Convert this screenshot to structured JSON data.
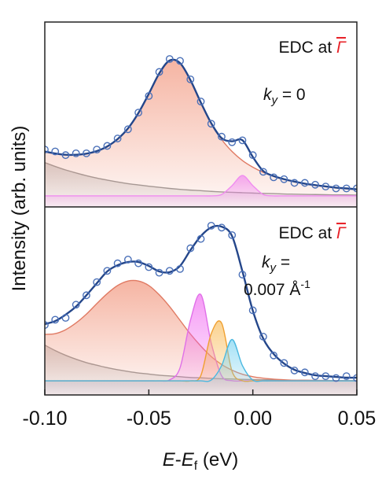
{
  "chart_data": [
    {
      "type": "line",
      "ylabel": "Intensity (arb. units)",
      "annotations": [
        [
          "EDC at ",
          "Γ"
        ],
        [
          "k",
          "y",
          " = 0"
        ]
      ],
      "annotation_color": "#e8242a",
      "xlim": [
        -0.1,
        0.05
      ],
      "ylim": [
        0,
        1
      ],
      "x": [
        -0.1,
        -0.095,
        -0.09,
        -0.085,
        -0.08,
        -0.075,
        -0.07,
        -0.065,
        -0.06,
        -0.055,
        -0.05,
        -0.045,
        -0.04,
        -0.035,
        -0.03,
        -0.025,
        -0.02,
        -0.015,
        -0.01,
        -0.005,
        0.0,
        0.005,
        0.01,
        0.015,
        0.02,
        0.025,
        0.03,
        0.035,
        0.04,
        0.045,
        0.05
      ],
      "series": [
        {
          "kind": "area",
          "color": "#9a9a9a",
          "fill": "#bdbdbd",
          "values": [
            0.24,
            0.219,
            0.2,
            0.184,
            0.169,
            0.156,
            0.145,
            0.135,
            0.126,
            0.119,
            0.112,
            0.106,
            0.1,
            0.095,
            0.091,
            0.088,
            0.084,
            0.081,
            0.079,
            0.077,
            0.075,
            0.073,
            0.072,
            0.07,
            0.069,
            0.068,
            0.067,
            0.066,
            0.065,
            0.065,
            0.064
          ]
        },
        {
          "kind": "area",
          "color": "#e07a63",
          "fill": "#f08a6e",
          "values": [
            0.3,
            0.289,
            0.282,
            0.282,
            0.288,
            0.302,
            0.327,
            0.367,
            0.425,
            0.508,
            0.612,
            0.722,
            0.792,
            0.778,
            0.686,
            0.565,
            0.453,
            0.365,
            0.3,
            0.251,
            0.215,
            0.187,
            0.167,
            0.15,
            0.137,
            0.126,
            0.118,
            0.111,
            0.104,
            0.1,
            0.095
          ]
        },
        {
          "kind": "area",
          "color": "#f08cf0",
          "fill": "#f07ef0",
          "values": [
            0.06,
            0.06,
            0.06,
            0.06,
            0.06,
            0.06,
            0.06,
            0.06,
            0.06,
            0.06,
            0.06,
            0.06,
            0.06,
            0.06,
            0.06,
            0.06,
            0.06,
            0.067,
            0.115,
            0.17,
            0.115,
            0.067,
            0.06,
            0.06,
            0.06,
            0.06,
            0.06,
            0.06,
            0.06,
            0.06,
            0.06
          ]
        },
        {
          "kind": "line",
          "color": "#24468a",
          "values": [
            0.3,
            0.289,
            0.282,
            0.282,
            0.288,
            0.302,
            0.327,
            0.367,
            0.425,
            0.508,
            0.612,
            0.722,
            0.792,
            0.778,
            0.686,
            0.565,
            0.453,
            0.372,
            0.355,
            0.361,
            0.27,
            0.194,
            0.167,
            0.15,
            0.137,
            0.126,
            0.118,
            0.111,
            0.104,
            0.1,
            0.095
          ]
        },
        {
          "kind": "points",
          "color": "#4a70b8",
          "values": [
            0.31,
            0.3,
            0.28,
            0.29,
            0.29,
            0.31,
            0.33,
            0.37,
            0.42,
            0.51,
            0.6,
            0.73,
            0.8,
            0.79,
            0.69,
            0.57,
            0.45,
            0.38,
            0.35,
            0.36,
            0.28,
            0.19,
            0.16,
            0.15,
            0.13,
            0.13,
            0.12,
            0.11,
            0.1,
            0.1,
            0.1
          ]
        }
      ]
    },
    {
      "type": "line",
      "xlabel": [
        "E",
        "-",
        "E",
        "f",
        " (eV)"
      ],
      "annotations": [
        [
          "EDC at ",
          "Γ"
        ],
        [
          "k",
          "y",
          " ="
        ],
        [
          "0.007 Å",
          "-1"
        ]
      ],
      "annotation_color": "#e8242a",
      "xlim": [
        -0.1,
        0.05
      ],
      "ylim": [
        0,
        1
      ],
      "xticks": [
        {
          "value": -0.1,
          "label": "-0.10"
        },
        -0.05,
        {
          "value": 0.0,
          "label": "0.00"
        },
        0.05
      ],
      "x": [
        -0.1,
        -0.095,
        -0.09,
        -0.085,
        -0.08,
        -0.075,
        -0.07,
        -0.065,
        -0.06,
        -0.055,
        -0.05,
        -0.045,
        -0.04,
        -0.035,
        -0.03,
        -0.025,
        -0.02,
        -0.015,
        -0.01,
        -0.005,
        0.0,
        0.005,
        0.01,
        0.015,
        0.02,
        0.025,
        0.03,
        0.035,
        0.04,
        0.045,
        0.05
      ],
      "series": [
        {
          "kind": "area",
          "color": "#9a9a9a",
          "fill": "#bdbdbd",
          "values": [
            0.265,
            0.236,
            0.211,
            0.19,
            0.172,
            0.158,
            0.145,
            0.134,
            0.125,
            0.117,
            0.111,
            0.105,
            0.101,
            0.097,
            0.093,
            0.091,
            0.088,
            0.086,
            0.085,
            0.083,
            0.082,
            0.081,
            0.08,
            0.079,
            0.078,
            0.078,
            0.077,
            0.077,
            0.076,
            0.076,
            0.076
          ]
        },
        {
          "kind": "area",
          "color": "#e07a63",
          "fill": "#f08a6e",
          "values": [
            0.322,
            0.326,
            0.347,
            0.383,
            0.43,
            0.486,
            0.539,
            0.582,
            0.606,
            0.606,
            0.582,
            0.533,
            0.47,
            0.397,
            0.324,
            0.26,
            0.204,
            0.162,
            0.132,
            0.11,
            0.097,
            0.089,
            0.084,
            0.081,
            0.078,
            0.078,
            0.077,
            0.077,
            0.076,
            0.076,
            0.076
          ]
        },
        {
          "kind": "area",
          "color": "#e070e8",
          "fill": "#f060f0",
          "values": [
            0.075,
            0.075,
            0.075,
            0.075,
            0.075,
            0.075,
            0.075,
            0.075,
            0.075,
            0.075,
            0.075,
            0.075,
            0.08,
            0.144,
            0.397,
            0.534,
            0.276,
            0.102,
            0.076,
            0.075,
            0.075,
            0.075,
            0.075,
            0.075,
            0.075,
            0.075,
            0.075,
            0.075,
            0.075,
            0.075,
            0.075
          ]
        },
        {
          "kind": "area",
          "color": "#f0a030",
          "fill": "#f8b850",
          "values": [
            0.075,
            0.075,
            0.075,
            0.075,
            0.075,
            0.075,
            0.075,
            0.075,
            0.075,
            0.075,
            0.075,
            0.075,
            0.075,
            0.075,
            0.075,
            0.103,
            0.326,
            0.382,
            0.126,
            0.076,
            0.075,
            0.075,
            0.075,
            0.075,
            0.075,
            0.075,
            0.075,
            0.075,
            0.075,
            0.075,
            0.075
          ]
        },
        {
          "kind": "area",
          "color": "#4ab8e0",
          "fill": "#70d0f0",
          "values": [
            0.075,
            0.075,
            0.075,
            0.075,
            0.075,
            0.075,
            0.075,
            0.075,
            0.075,
            0.075,
            0.075,
            0.075,
            0.075,
            0.075,
            0.075,
            0.075,
            0.079,
            0.156,
            0.295,
            0.156,
            0.079,
            0.075,
            0.075,
            0.075,
            0.075,
            0.075,
            0.075,
            0.075,
            0.075,
            0.075,
            0.075
          ]
        },
        {
          "kind": "line",
          "color": "#24468a",
          "values": [
            0.377,
            0.393,
            0.427,
            0.47,
            0.53,
            0.594,
            0.657,
            0.69,
            0.707,
            0.707,
            0.686,
            0.657,
            0.653,
            0.686,
            0.77,
            0.845,
            0.891,
            0.895,
            0.845,
            0.657,
            0.448,
            0.3,
            0.218,
            0.167,
            0.134,
            0.117,
            0.105,
            0.1,
            0.096,
            0.092,
            0.092
          ]
        },
        {
          "kind": "points",
          "color": "#4a70b8",
          "values": [
            0.372,
            0.4,
            0.41,
            0.48,
            0.53,
            0.6,
            0.66,
            0.7,
            0.72,
            0.7,
            0.68,
            0.65,
            0.66,
            0.67,
            0.78,
            0.83,
            0.9,
            0.89,
            0.85,
            0.64,
            0.45,
            0.31,
            0.21,
            0.17,
            0.13,
            0.12,
            0.1,
            0.1,
            0.09,
            0.1,
            0.09
          ]
        }
      ]
    }
  ]
}
